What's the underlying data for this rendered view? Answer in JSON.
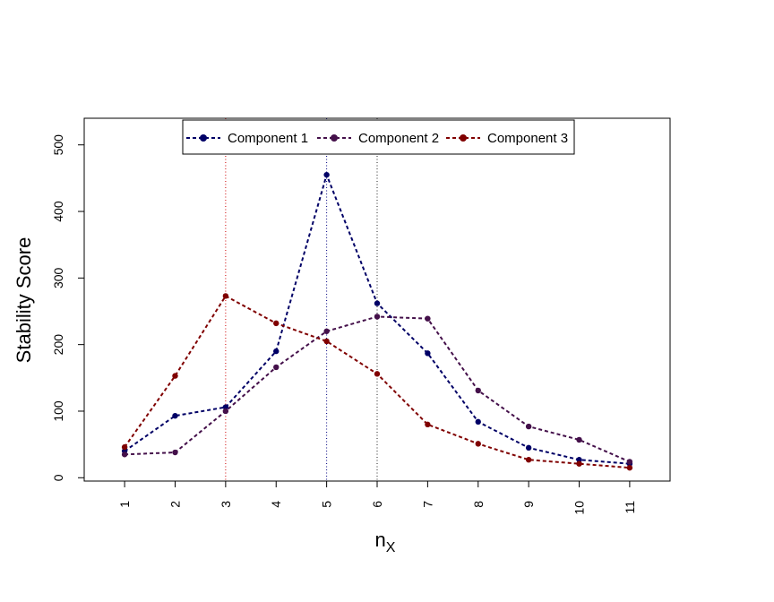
{
  "chart_data": {
    "type": "line",
    "title": "",
    "xlabel": "n",
    "xlabel_subscript": "X",
    "ylabel": "Stability Score",
    "x": [
      1,
      2,
      3,
      4,
      5,
      6,
      7,
      8,
      9,
      10,
      11
    ],
    "xlim": [
      0.2,
      11.8
    ],
    "ylim": [
      -5,
      540
    ],
    "yticks": [
      0,
      100,
      200,
      300,
      400,
      500
    ],
    "grid": false,
    "legend_position": "top",
    "series": [
      {
        "name": "Component 1",
        "color": "#000066",
        "values": [
          40,
          93,
          106,
          190,
          455,
          262,
          187,
          84,
          45,
          27,
          21
        ]
      },
      {
        "name": "Component 2",
        "color": "#44104a",
        "values": [
          35,
          38,
          100,
          166,
          220,
          242,
          239,
          131,
          77,
          57,
          24
        ]
      },
      {
        "name": "Component 3",
        "color": "#800000",
        "values": [
          46,
          153,
          273,
          232,
          205,
          156,
          80,
          51,
          27,
          21,
          15
        ]
      }
    ],
    "reference_lines": [
      {
        "x": 3,
        "color": "#cc0000"
      },
      {
        "x": 5,
        "color": "#000080"
      },
      {
        "x": 6,
        "color": "#222222"
      }
    ]
  }
}
